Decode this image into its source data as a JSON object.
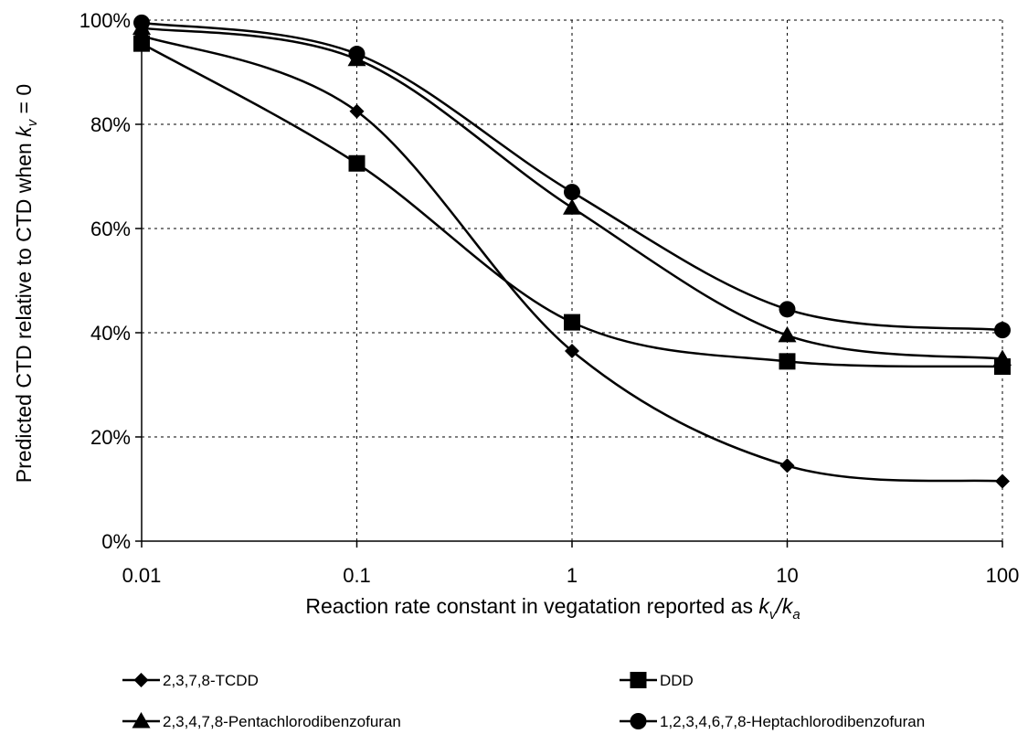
{
  "chart_data": {
    "type": "line",
    "x_scale": "log",
    "x": [
      0.01,
      0.1,
      1,
      10,
      100
    ],
    "x_tick_labels": [
      "0.01",
      "0.1",
      "1",
      "10",
      "100"
    ],
    "y_tick_labels": [
      "0%",
      "20%",
      "40%",
      "60%",
      "80%",
      "100%"
    ],
    "ylim": [
      0,
      1
    ],
    "grid": true,
    "legend_position": "bottom",
    "xlabel": {
      "prefix": "Reaction rate constant in vegatation reported as ",
      "k1": "k",
      "sub1": "v",
      "slash": "/",
      "k2": "k",
      "sub2": "a"
    },
    "ylabel": {
      "prefix": "Predicted CTD relative to CTD when ",
      "k": "k",
      "sub": "v",
      "suffix": " = 0"
    },
    "series": [
      {
        "name": "2,3,7,8-TCDD",
        "marker": "diamond",
        "values": [
          0.97,
          0.825,
          0.365,
          0.145,
          0.115
        ]
      },
      {
        "name": "DDD",
        "marker": "square",
        "values": [
          0.955,
          0.725,
          0.42,
          0.345,
          0.335
        ]
      },
      {
        "name": "2,3,4,7,8-Pentachlorodibenzofuran",
        "marker": "triangle",
        "values": [
          0.985,
          0.925,
          0.64,
          0.395,
          0.35
        ]
      },
      {
        "name": "1,2,3,4,6,7,8-Heptachlorodibenzofuran",
        "marker": "circle",
        "values": [
          0.995,
          0.935,
          0.67,
          0.445,
          0.405
        ]
      }
    ]
  }
}
